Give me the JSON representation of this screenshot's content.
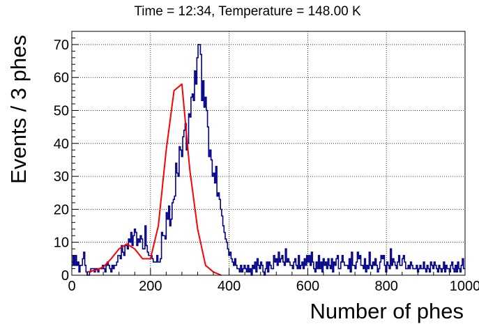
{
  "chart_data": {
    "type": "line",
    "title": "Time = 12:34, Temperature = 148.00 K",
    "xlabel": "Number of phes",
    "ylabel": "Events / 3 phes",
    "xlim": [
      0,
      1000
    ],
    "ylim": [
      0,
      74
    ],
    "bin_width": 3,
    "grid": true,
    "x_ticks": [
      0,
      200,
      400,
      600,
      800,
      1000
    ],
    "x_tick_labels": [
      "0",
      "200",
      "400",
      "600",
      "800",
      "1000"
    ],
    "y_ticks": [
      0,
      10,
      20,
      30,
      40,
      50,
      60,
      70
    ],
    "y_tick_labels": [
      "0",
      "10",
      "20",
      "30",
      "40",
      "50",
      "60",
      "70"
    ],
    "series": [
      {
        "kind": "histogram",
        "color": "#00008b",
        "bins_x": [
          0,
          3,
          6,
          9,
          12,
          15,
          18,
          21,
          24,
          27,
          30,
          33,
          36,
          39,
          42,
          45,
          48,
          51,
          54,
          57,
          60,
          63,
          66,
          69,
          72,
          75,
          78,
          81,
          84,
          87,
          90,
          93,
          96,
          99,
          102,
          105,
          108,
          111,
          114,
          117,
          120,
          123,
          126,
          129,
          132,
          135,
          138,
          141,
          144,
          147,
          150,
          153,
          156,
          159,
          162,
          165,
          168,
          171,
          174,
          177,
          180,
          183,
          186,
          189,
          192,
          195,
          198,
          201,
          204,
          207,
          210,
          213,
          216,
          219,
          222,
          225,
          228,
          231,
          234,
          237,
          240,
          243,
          246,
          249,
          252,
          255,
          258,
          261,
          264,
          267,
          270,
          273,
          276,
          279,
          282,
          285,
          288,
          291,
          294,
          297,
          300,
          303,
          306,
          309,
          312,
          315,
          318,
          321,
          324,
          327,
          330,
          333,
          336,
          339,
          342,
          345,
          348,
          351,
          354,
          357,
          360,
          363,
          366,
          369,
          372,
          375,
          378,
          381,
          384,
          387,
          390,
          393,
          396,
          399,
          402,
          405,
          408,
          411,
          414,
          417,
          420,
          423,
          426,
          429,
          432,
          435,
          438,
          441,
          444,
          447,
          450,
          453,
          456,
          459,
          462,
          465,
          468,
          471,
          474,
          477,
          480,
          483,
          486,
          489,
          492,
          495,
          498,
          501,
          504,
          507,
          510,
          513,
          516,
          519,
          522,
          525,
          528,
          531,
          534,
          537,
          540,
          543,
          546,
          549,
          552,
          555,
          558,
          561,
          564,
          567,
          570,
          573,
          576,
          579,
          582,
          585,
          588,
          591,
          594,
          597,
          600,
          603,
          606,
          609,
          612,
          615,
          618,
          621,
          624,
          627,
          630,
          633,
          636,
          639,
          642,
          645,
          648,
          651,
          654,
          657,
          660,
          663,
          666,
          669,
          672,
          675,
          678,
          681,
          684,
          687,
          690,
          693,
          696,
          699,
          702,
          705,
          708,
          711,
          714,
          717,
          720,
          723,
          726,
          729,
          732,
          735,
          738,
          741,
          744,
          747,
          750,
          753,
          756,
          759,
          762,
          765,
          768,
          771,
          774,
          777,
          780,
          783,
          786,
          789,
          792,
          795,
          798,
          801,
          804,
          807,
          810,
          813,
          816,
          819,
          822,
          825,
          828,
          831,
          834,
          837,
          840,
          843,
          846,
          849,
          852,
          855,
          858,
          861,
          864,
          867,
          870,
          873,
          876,
          879,
          882,
          885,
          888,
          891,
          894,
          897,
          900,
          903,
          906,
          909,
          912,
          915,
          918,
          921,
          924,
          927,
          930,
          933,
          936,
          939,
          942,
          945,
          948,
          951,
          954,
          957,
          960,
          963,
          966,
          969,
          972,
          975,
          978,
          981,
          984,
          987,
          990,
          993,
          996
        ],
        "counts": [
          3,
          6,
          3,
          6,
          3,
          4,
          1,
          3,
          3,
          5,
          7,
          3,
          1,
          0,
          0,
          1,
          2,
          2,
          2,
          1,
          2,
          2,
          1,
          2,
          2,
          2,
          3,
          2,
          1,
          3,
          4,
          3,
          2,
          1,
          3,
          2,
          3,
          3,
          4,
          6,
          6,
          5,
          9,
          7,
          6,
          9,
          9,
          8,
          11,
          10,
          13,
          9,
          12,
          14,
          13,
          9,
          11,
          10,
          12,
          11,
          8,
          8,
          15,
          9,
          7,
          6,
          6,
          6,
          5,
          4,
          4,
          4,
          6,
          4,
          4,
          5,
          13,
          12,
          12,
          11,
          19,
          17,
          21,
          15,
          17,
          22,
          23,
          24,
          34,
          31,
          30,
          39,
          38,
          36,
          42,
          44,
          46,
          38,
          40,
          49,
          48,
          54,
          55,
          53,
          62,
          58,
          66,
          70,
          70,
          67,
          53,
          59,
          51,
          54,
          50,
          45,
          36,
          38,
          35,
          30,
          31,
          28,
          33,
          24,
          25,
          23,
          20,
          18,
          15,
          13,
          11,
          10,
          8,
          6,
          7,
          5,
          4,
          3,
          5,
          3,
          2,
          2,
          1,
          3,
          1,
          2,
          3,
          2,
          1,
          3,
          1,
          2,
          0,
          3,
          2,
          4,
          1,
          5,
          3,
          2,
          4,
          3,
          1,
          0,
          2,
          4,
          1,
          4,
          3,
          2,
          2,
          6,
          4,
          5,
          3,
          7,
          4,
          5,
          6,
          4,
          3,
          8,
          4,
          5,
          4,
          3,
          3,
          2,
          4,
          5,
          3,
          2,
          6,
          2,
          3,
          4,
          2,
          5,
          3,
          6,
          4,
          6,
          3,
          7,
          4,
          2,
          1,
          4,
          2,
          6,
          2,
          4,
          1,
          5,
          3,
          4,
          2,
          5,
          3,
          2,
          5,
          1,
          4,
          3,
          5,
          6,
          2,
          2,
          4,
          6,
          4,
          3,
          3,
          3,
          2,
          5,
          1,
          7,
          3,
          3,
          2,
          4,
          7,
          5,
          6,
          3,
          3,
          2,
          5,
          1,
          3,
          2,
          7,
          3,
          2,
          4,
          3,
          5,
          3,
          1,
          2,
          4,
          6,
          5,
          6,
          3,
          1,
          4,
          3,
          2,
          8,
          3,
          5,
          4,
          3,
          2,
          4,
          6,
          3,
          3,
          5,
          6,
          4,
          2,
          2,
          3,
          2,
          4,
          3,
          2,
          2,
          2,
          3,
          1,
          2,
          3,
          2,
          2,
          4,
          2,
          1,
          3,
          2,
          1,
          4,
          3,
          2,
          4,
          3,
          2,
          1,
          3,
          2,
          1,
          2,
          4,
          1,
          3,
          2,
          2,
          1,
          3,
          4,
          2,
          1,
          3,
          1,
          4,
          2,
          1,
          3,
          5,
          2,
          1,
          3,
          1,
          2,
          1,
          3,
          2,
          2,
          4,
          3,
          2,
          1,
          0,
          2,
          1,
          2
        ]
      },
      {
        "kind": "fit",
        "color": "#ff0000",
        "x": [
          40,
          60,
          80,
          100,
          120,
          140,
          160,
          180,
          200,
          220,
          240,
          260,
          280,
          300,
          320,
          340,
          360,
          380
        ],
        "y": [
          1,
          1.5,
          2.5,
          5,
          8,
          9.5,
          8,
          5,
          5,
          15,
          38,
          56,
          58,
          32,
          14,
          3,
          1,
          0
        ]
      }
    ]
  }
}
